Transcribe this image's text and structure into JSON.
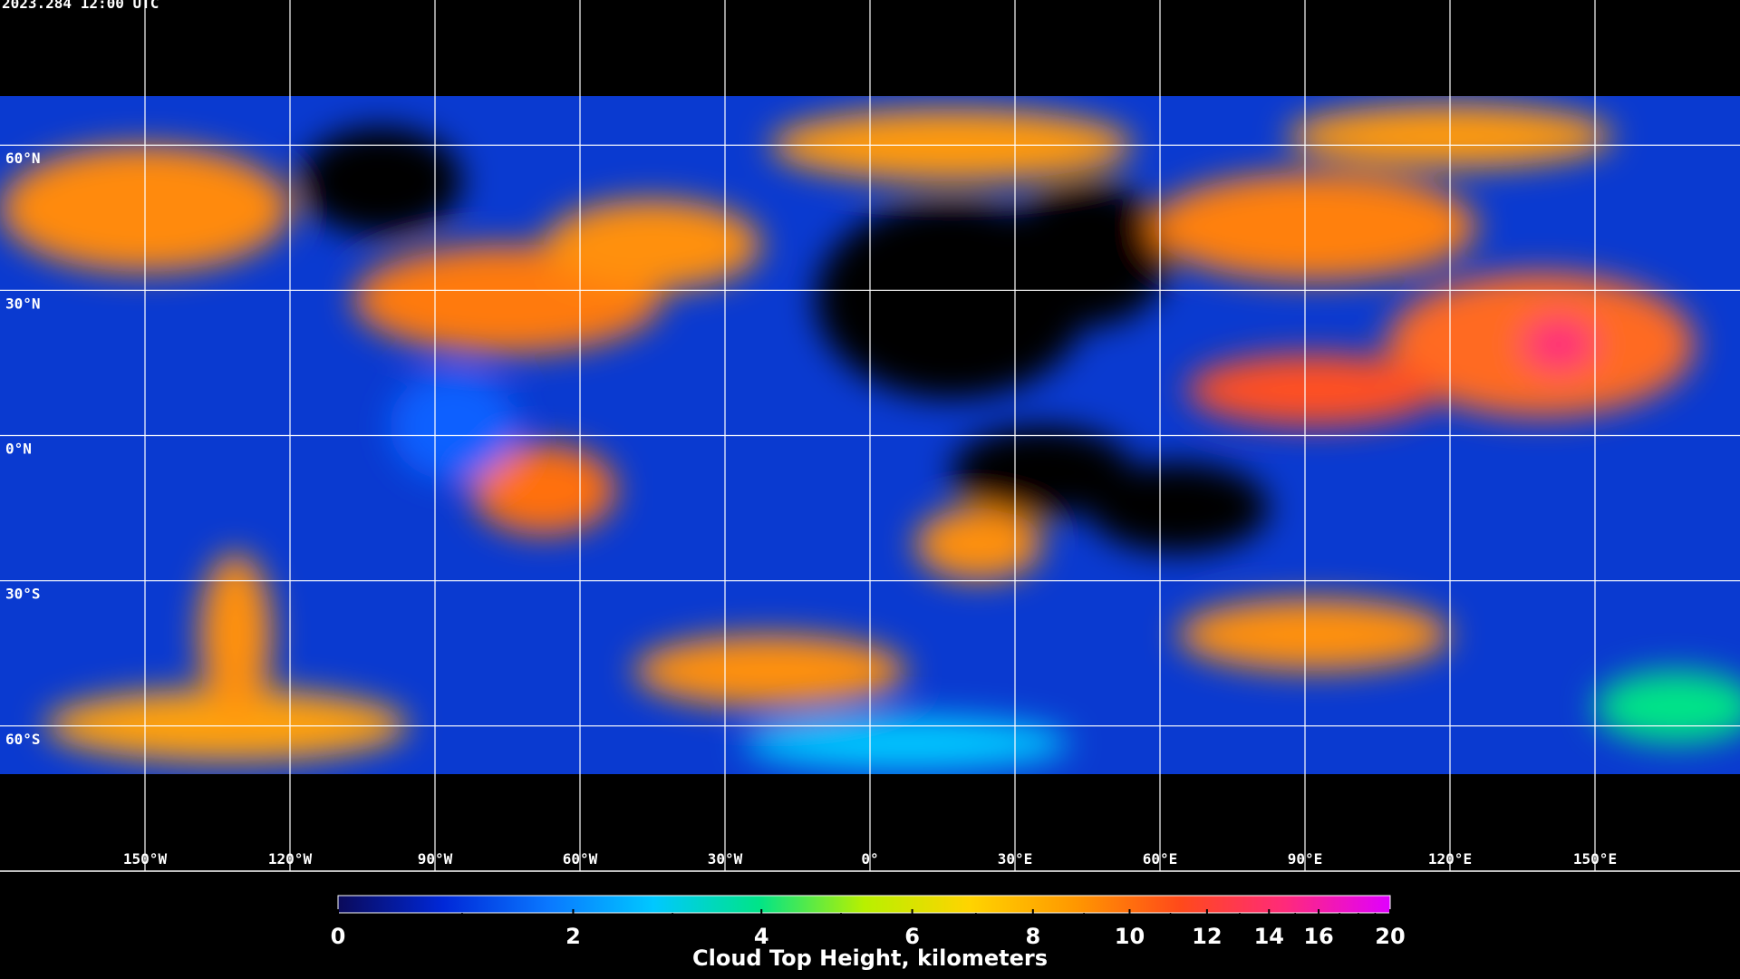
{
  "timestamp": "2023.284 12:00 UTC",
  "map": {
    "latitudes": [
      {
        "value": 60,
        "label": "60°N"
      },
      {
        "value": 30,
        "label": "30°N"
      },
      {
        "value": 0,
        "label": "0°N"
      },
      {
        "value": -30,
        "label": "30°S"
      },
      {
        "value": -60,
        "label": "60°S"
      }
    ],
    "longitudes": [
      {
        "value": -150,
        "label": "150°W"
      },
      {
        "value": -120,
        "label": "120°W"
      },
      {
        "value": -90,
        "label": "90°W"
      },
      {
        "value": -60,
        "label": "60°W"
      },
      {
        "value": -30,
        "label": "30°W"
      },
      {
        "value": 0,
        "label": "0°"
      },
      {
        "value": 30,
        "label": "30°E"
      },
      {
        "value": 60,
        "label": "60°E"
      },
      {
        "value": 90,
        "label": "90°E"
      },
      {
        "value": 120,
        "label": "120°E"
      },
      {
        "value": 150,
        "label": "150°E"
      }
    ],
    "grid_color": "#ffffff"
  },
  "colorbar": {
    "title": "Cloud Top Height, kilometers",
    "lim": [
      0,
      20
    ],
    "ticks": [
      0,
      2,
      4,
      6,
      8,
      10,
      12,
      14,
      16,
      20
    ],
    "minor_ticks": [
      1,
      3,
      5,
      7,
      9,
      11,
      13,
      15,
      17,
      18,
      19
    ],
    "colors": [
      "#0a0a5a",
      "#0028d8",
      "#0a78ff",
      "#00c8ff",
      "#00e488",
      "#b8f000",
      "#ffd400",
      "#ff9800",
      "#ff4a1a",
      "#ff2a7a",
      "#e000ff"
    ]
  }
}
